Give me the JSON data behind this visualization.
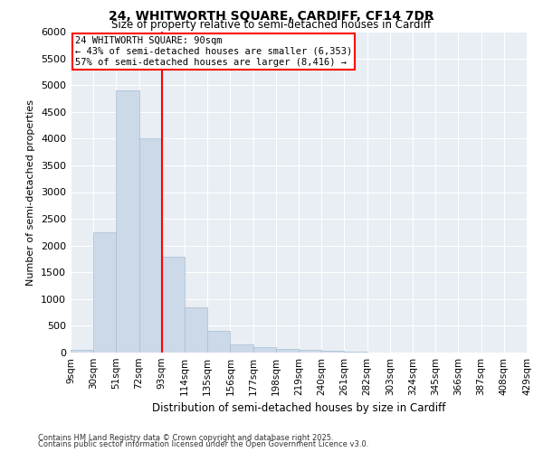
{
  "title_line1": "24, WHITWORTH SQUARE, CARDIFF, CF14 7DR",
  "title_line2": "Size of property relative to semi-detached houses in Cardiff",
  "xlabel": "Distribution of semi-detached houses by size in Cardiff",
  "ylabel": "Number of semi-detached properties",
  "footnote1": "Contains HM Land Registry data © Crown copyright and database right 2025.",
  "footnote2": "Contains public sector information licensed under the Open Government Licence v3.0.",
  "annotation_title": "24 WHITWORTH SQUARE: 90sqm",
  "annotation_line2": "← 43% of semi-detached houses are smaller (6,353)",
  "annotation_line3": "57% of semi-detached houses are larger (8,416) →",
  "bar_color": "#ccd9e8",
  "bar_edge_color": "#a8bdd0",
  "vline_color": "red",
  "plot_bg_color": "#e8eef4",
  "grid_color": "white",
  "bin_labels": [
    "9sqm",
    "30sqm",
    "51sqm",
    "72sqm",
    "93sqm",
    "114sqm",
    "135sqm",
    "156sqm",
    "177sqm",
    "198sqm",
    "219sqm",
    "240sqm",
    "261sqm",
    "282sqm",
    "303sqm",
    "324sqm",
    "345sqm",
    "366sqm",
    "387sqm",
    "408sqm",
    "429sqm"
  ],
  "bar_heights": [
    50,
    2250,
    4900,
    4000,
    1800,
    850,
    400,
    160,
    100,
    75,
    50,
    30,
    15,
    5,
    3,
    2,
    1,
    1,
    0,
    0
  ],
  "ylim": [
    0,
    6000
  ],
  "yticks": [
    0,
    500,
    1000,
    1500,
    2000,
    2500,
    3000,
    3500,
    4000,
    4500,
    5000,
    5500,
    6000
  ],
  "vline_x": 3.5,
  "figsize": [
    6.0,
    5.0
  ],
  "dpi": 100
}
